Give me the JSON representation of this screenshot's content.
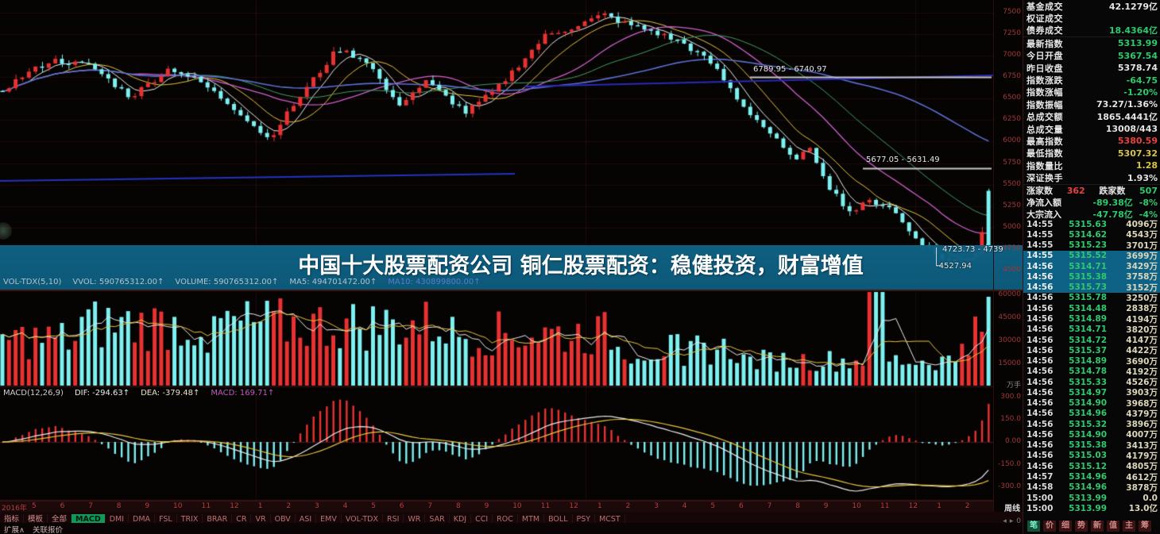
{
  "banner": {
    "title": "中国十大股票配资公司 铜仁股票配资：稳健投资，财富增值",
    "bg_color": "#0f6386"
  },
  "chart_data": {
    "type": "candlestick",
    "panels": [
      "price",
      "volume",
      "macd"
    ],
    "period_label": "周线",
    "x_axis": {
      "labels": [
        "2016年",
        "5",
        "6",
        "7",
        "8",
        "9",
        "10",
        "11",
        "12",
        "1",
        "2",
        "3",
        "4",
        "5",
        "6",
        "7",
        "8",
        "9",
        "10",
        "11",
        "12",
        "1",
        "2",
        "3",
        "4",
        "5",
        "6",
        "7",
        "8",
        "9",
        "10",
        "11",
        "12",
        "1",
        "2"
      ]
    },
    "main": {
      "ylim": [
        4400,
        7650
      ],
      "yticks": [
        "7500",
        "7250",
        "7000",
        "6750",
        "6500",
        "6250",
        "6000",
        "5750",
        "5500",
        "5250",
        "5000",
        "4750",
        "4500"
      ],
      "close_path": [
        [
          0,
          6600
        ],
        [
          0.02,
          6760
        ],
        [
          0.05,
          6950
        ],
        [
          0.09,
          6880
        ],
        [
          0.13,
          6520
        ],
        [
          0.17,
          6860
        ],
        [
          0.2,
          6700
        ],
        [
          0.24,
          6350
        ],
        [
          0.27,
          6030
        ],
        [
          0.3,
          6500
        ],
        [
          0.34,
          7080
        ],
        [
          0.37,
          6940
        ],
        [
          0.4,
          6420
        ],
        [
          0.43,
          6700
        ],
        [
          0.47,
          6340
        ],
        [
          0.5,
          6600
        ],
        [
          0.55,
          7230
        ],
        [
          0.58,
          7340
        ],
        [
          0.61,
          7480
        ],
        [
          0.63,
          7380
        ],
        [
          0.66,
          7280
        ],
        [
          0.69,
          7150
        ],
        [
          0.72,
          6900
        ],
        [
          0.75,
          6430
        ],
        [
          0.78,
          6080
        ],
        [
          0.8,
          5800
        ],
        [
          0.82,
          5900
        ],
        [
          0.84,
          5450
        ],
        [
          0.86,
          5180
        ],
        [
          0.88,
          5310
        ],
        [
          0.9,
          5250
        ],
        [
          0.92,
          4950
        ],
        [
          0.95,
          4660
        ],
        [
          0.97,
          4580
        ],
        [
          0.99,
          4760
        ],
        [
          1,
          5314
        ]
      ],
      "annotations": [
        {
          "text": "6789.95 - 6740.97",
          "x": 948,
          "y": 82,
          "line_y": 97,
          "line_x1": 944,
          "line_x2": 1248
        },
        {
          "text": "5677.05 - 5631.49",
          "x": 1090,
          "y": 196,
          "line_y": 212,
          "line_x1": 1086,
          "line_x2": 1248
        },
        {
          "text": "4723.73 - 4739",
          "x": 1186,
          "y": 309
        },
        {
          "text": "-4527.94",
          "x": 1178,
          "y": 330
        }
      ],
      "trendlines": [
        {
          "x1": 0,
          "y1": 228,
          "x2": 648,
          "y2": 219,
          "color": "#2334c0"
        },
        {
          "x1": 660,
          "y1": 109,
          "x2": 1250,
          "y2": 95,
          "color": "#2a2ab8"
        }
      ]
    },
    "volume": {
      "label_parts": {
        "name": "VOL-TDX(5,10)",
        "vvol": "VVOL: 590765312.00↑",
        "volume": "VOLUME: 590765312.00↑",
        "ma5": "MA5: 494701472.00↑",
        "ma10": "MA10: 430899800.00↑"
      },
      "yticks": [
        "60000",
        "45000",
        "30000",
        "15000"
      ],
      "unit": "万手"
    },
    "macd": {
      "label_parts": {
        "name": "MACD(12,26,9)",
        "dif": "DIF: -294.63↑",
        "dea": "DEA: -379.48↑",
        "macd": "MACD: 169.71↑"
      },
      "yticks": [
        "300.0",
        "150.0",
        "0.00",
        "-150.0",
        "-300.0"
      ]
    },
    "colors": {
      "up": "#e83232",
      "down": "#7df0f0",
      "ma5": "#ececec",
      "ma10": "#e6c53c",
      "ma20": "#cf5fcf",
      "ma30": "#3f9e63",
      "ma60": "#5a6fd0"
    }
  },
  "sidebar": {
    "quote_rows": [
      {
        "label": "基金成交",
        "value": "42.1279亿",
        "c": "white"
      },
      {
        "label": "权证成交",
        "value": "",
        "c": "white"
      },
      {
        "label": "债券成交",
        "value": "18.4364亿",
        "c": "green",
        "divider": true
      },
      {
        "label": "最新指数",
        "value": "5313.99",
        "c": "green"
      },
      {
        "label": "今日开盘",
        "value": "5367.54",
        "c": "green"
      },
      {
        "label": "昨日收盘",
        "value": "5378.74",
        "c": "white"
      },
      {
        "label": "指数涨跌",
        "value": "-64.75",
        "c": "green"
      },
      {
        "label": "指数涨幅",
        "value": "-1.20%",
        "c": "green"
      },
      {
        "label": "指数振幅",
        "value": "73.27/1.36%",
        "c": "white"
      },
      {
        "label": "总成交额",
        "value": "1865.4441亿",
        "c": "white"
      },
      {
        "label": "总成交量",
        "value": "13008/443",
        "c": "white"
      },
      {
        "label": "最高指数",
        "value": "5380.59",
        "c": "red"
      },
      {
        "label": "最低指数",
        "value": "5307.32",
        "c": "yellow"
      },
      {
        "label": "指数量比",
        "value": "1.28",
        "c": "yellow"
      },
      {
        "label": "深证换手",
        "value": "1.93%",
        "c": "white",
        "divider": true
      }
    ],
    "updown": {
      "up_label": "涨家数",
      "up": "362",
      "down_label": "跌家数",
      "down": "507"
    },
    "flow_rows": [
      {
        "label": "净流入额",
        "value": "-89.38亿",
        "pct": "-8%",
        "c": "green"
      },
      {
        "label": "大宗流入",
        "value": "-47.78亿",
        "pct": "-4%",
        "c": "green"
      }
    ],
    "ticks": [
      [
        "14:55",
        "5315.63",
        "4096万"
      ],
      [
        "14:55",
        "5314.62",
        "4543万"
      ],
      [
        "14:55",
        "5315.23",
        "3701万"
      ],
      [
        "14:55",
        "5315.52",
        "3699万"
      ],
      [
        "14:56",
        "5314.71",
        "3429万"
      ],
      [
        "14:56",
        "5315.38",
        "3758万"
      ],
      [
        "14:56",
        "5315.73",
        "3152万"
      ],
      [
        "14:56",
        "5315.78",
        "3250万"
      ],
      [
        "14:56",
        "5314.48",
        "2838万"
      ],
      [
        "14:56",
        "5314.89",
        "4194万"
      ],
      [
        "14:56",
        "5314.71",
        "3820万"
      ],
      [
        "14:56",
        "5314.72",
        "4147万"
      ],
      [
        "14:56",
        "5315.37",
        "4422万"
      ],
      [
        "14:56",
        "5314.89",
        "3690万"
      ],
      [
        "14:56",
        "5314.78",
        "4192万"
      ],
      [
        "14:56",
        "5315.33",
        "4526万"
      ],
      [
        "14:56",
        "5314.97",
        "3903万"
      ],
      [
        "14:56",
        "5314.90",
        "3968万"
      ],
      [
        "14:56",
        "5314.96",
        "4379万"
      ],
      [
        "14:56",
        "5315.32",
        "3896万"
      ],
      [
        "14:56",
        "5314.90",
        "4007万"
      ],
      [
        "14:56",
        "5315.38",
        "3413万"
      ],
      [
        "14:56",
        "5315.03",
        "4179万"
      ],
      [
        "14:56",
        "5315.12",
        "4805万"
      ],
      [
        "14:57",
        "5314.96",
        "4612万"
      ],
      [
        "14:58",
        "5314.96",
        "3878万"
      ],
      [
        "15:00",
        "5313.99",
        "0.0"
      ],
      [
        "15:00",
        "5313.99",
        "13.0亿"
      ]
    ],
    "highlight_tick_rows": [
      3,
      4,
      5,
      6
    ],
    "tabs": [
      "笔",
      "价",
      "细",
      "势",
      "新",
      "值",
      "主",
      "筹"
    ]
  },
  "toolbar": {
    "left_items": [
      "指标",
      "模板",
      "全部"
    ],
    "indicators": [
      "MACD",
      "DMI",
      "DMA",
      "FSL",
      "TRIX",
      "BRAR",
      "CR",
      "VR",
      "OBV",
      "ASI",
      "EMV",
      "VOL-TDX",
      "RSI",
      "WR",
      "SAR",
      "KDJ",
      "CCI",
      "ROC",
      "MTM",
      "BOLL",
      "PSY",
      "MCST"
    ],
    "active_indicator": "MACD",
    "bottom_items": [
      "扩展∧",
      "关联报价"
    ],
    "page_label": "0"
  }
}
